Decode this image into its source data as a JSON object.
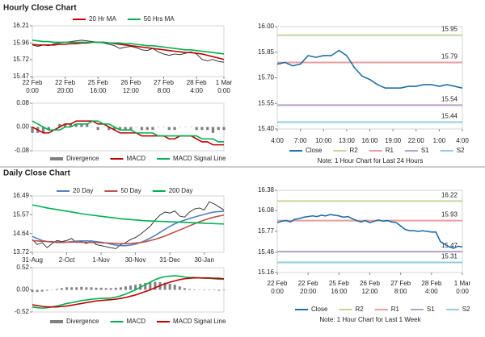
{
  "sections": [
    {
      "title": "Hourly Close Chart"
    },
    {
      "title": "Daily Close Chart"
    }
  ],
  "chart_data": [
    {
      "type": "line",
      "ylim": [
        15.47,
        16.21
      ],
      "yticks": [
        16.21,
        15.96,
        15.72,
        15.47
      ],
      "xlim": [
        0,
        35
      ],
      "xticks": [
        {
          "value": 0,
          "label": [
            "22 Feb",
            "0:00"
          ]
        },
        {
          "value": 6,
          "label": [
            "22 Feb",
            "20:00"
          ]
        },
        {
          "value": 12,
          "label": [
            "25 Feb",
            "16:00"
          ]
        },
        {
          "value": 18,
          "label": [
            "26 Feb",
            "12:00"
          ]
        },
        {
          "value": 24,
          "label": [
            "27 Feb",
            "8:00"
          ]
        },
        {
          "value": 30,
          "label": [
            "28 Feb",
            "4:00"
          ]
        },
        {
          "value": 35,
          "label": [
            "1 Mar",
            "0:00"
          ]
        }
      ],
      "series": [
        {
          "color": "#222222",
          "values": [
            15.93,
            15.91,
            15.93,
            15.92,
            15.95,
            15.96,
            15.97,
            15.98,
            15.99,
            16.0,
            15.99,
            15.98,
            15.97,
            15.96,
            15.94,
            15.92,
            15.88,
            15.9,
            15.91,
            15.89,
            15.86,
            15.85,
            15.88,
            15.83,
            15.8,
            15.78,
            15.8,
            15.79,
            15.81,
            15.83,
            15.8,
            15.72,
            15.7,
            15.72,
            15.69,
            15.68
          ]
        },
        {
          "name": "20 Hr MA",
          "color": "#c00000",
          "values": [
            15.94,
            15.93,
            15.93,
            15.93,
            15.93,
            15.94,
            15.94,
            15.95,
            15.95,
            15.96,
            15.96,
            15.97,
            15.97,
            15.97,
            15.96,
            15.95,
            15.94,
            15.93,
            15.92,
            15.91,
            15.9,
            15.89,
            15.88,
            15.87,
            15.86,
            15.85,
            15.84,
            15.83,
            15.82,
            15.82,
            15.81,
            15.8,
            15.78,
            15.76,
            15.74,
            15.72
          ]
        },
        {
          "name": "50 Hrs MA",
          "color": "#00b050",
          "values": [
            16.0,
            15.99,
            15.98,
            15.98,
            15.97,
            15.97,
            15.97,
            15.97,
            15.97,
            15.97,
            15.97,
            15.97,
            15.97,
            15.97,
            15.96,
            15.96,
            15.96,
            15.95,
            15.95,
            15.94,
            15.93,
            15.92,
            15.92,
            15.91,
            15.9,
            15.89,
            15.88,
            15.87,
            15.86,
            15.86,
            15.85,
            15.84,
            15.83,
            15.82,
            15.81,
            15.8
          ]
        }
      ]
    },
    {
      "type": "line",
      "ylim": [
        -0.08,
        0.08
      ],
      "yticks": [
        0.08,
        {
          "value": 0,
          "label": "0.00"
        },
        -0.08
      ],
      "xlim": [
        0,
        35
      ],
      "series": [
        {
          "name": "Divergence",
          "type": "bar",
          "color": "#808080",
          "values": [
            -0.02,
            -0.02,
            -0.02,
            -0.01,
            0,
            0.01,
            0.01,
            0.01,
            0.01,
            0.01,
            0.01,
            0,
            -0.01,
            0,
            -0.01,
            -0.01,
            -0.01,
            -0.01,
            -0.01,
            0,
            -0.01,
            -0.01,
            -0.01,
            0,
            0,
            -0.01,
            -0.01,
            0,
            0,
            0,
            -0.01,
            -0.01,
            -0.01,
            -0.02,
            -0.01,
            -0.01
          ]
        },
        {
          "name": "MACD",
          "color": "#c00000",
          "values": [
            0.0,
            -0.01,
            -0.02,
            -0.02,
            -0.01,
            0.0,
            0.01,
            0.01,
            0.02,
            0.02,
            0.02,
            0.02,
            0.01,
            0.01,
            0.0,
            -0.01,
            -0.02,
            -0.02,
            -0.02,
            -0.02,
            -0.03,
            -0.03,
            -0.03,
            -0.03,
            -0.03,
            -0.04,
            -0.04,
            -0.03,
            -0.03,
            -0.03,
            -0.04,
            -0.05,
            -0.05,
            -0.06,
            -0.06,
            -0.06
          ]
        },
        {
          "name": "MACD Signal Line",
          "color": "#00b050",
          "values": [
            0.02,
            0.01,
            0.0,
            -0.01,
            -0.01,
            -0.01,
            0.0,
            0.0,
            0.01,
            0.01,
            0.01,
            0.02,
            0.02,
            0.01,
            0.01,
            0.0,
            -0.01,
            -0.01,
            -0.01,
            -0.02,
            -0.02,
            -0.02,
            -0.02,
            -0.03,
            -0.03,
            -0.03,
            -0.03,
            -0.03,
            -0.03,
            -0.03,
            -0.03,
            -0.04,
            -0.04,
            -0.04,
            -0.05,
            -0.05
          ]
        }
      ]
    },
    {
      "type": "line",
      "ylim": [
        15.4,
        16.0
      ],
      "yticks": [
        {
          "value": 16,
          "label": "16.00"
        },
        15.85,
        {
          "value": 15.7,
          "label": "15.70"
        },
        15.55,
        {
          "value": 15.4,
          "label": "15.40"
        }
      ],
      "xlim": [
        0,
        24
      ],
      "xticks": [
        {
          "value": 0,
          "label": "4:00"
        },
        {
          "value": 3,
          "label": "7:00"
        },
        {
          "value": 6,
          "label": "10:00"
        },
        {
          "value": 9,
          "label": "13:00"
        },
        {
          "value": 12,
          "label": "16:00"
        },
        {
          "value": 15,
          "label": "19:00"
        },
        {
          "value": 18,
          "label": "22:00"
        },
        {
          "value": 21,
          "label": "1:00"
        },
        {
          "value": 24,
          "label": "4:00"
        }
      ],
      "series": [
        {
          "name": "Close",
          "color": "#1f6fa8",
          "values": [
            15.78,
            15.79,
            15.77,
            15.78,
            15.83,
            15.82,
            15.83,
            15.83,
            15.86,
            15.83,
            15.76,
            15.71,
            15.69,
            15.66,
            15.64,
            15.64,
            15.64,
            15.65,
            15.65,
            15.66,
            15.66,
            15.65,
            15.66,
            15.65,
            15.64
          ]
        }
      ],
      "reference_lines": [
        {
          "name": "R2",
          "color": "#c3d69b",
          "value": 15.95
        },
        {
          "name": "R1",
          "color": "#e6a0a0",
          "value": 15.79
        },
        {
          "name": "S1",
          "color": "#b3a2c7",
          "value": 15.54
        },
        {
          "name": "S2",
          "color": "#93cddd",
          "value": 15.44
        }
      ],
      "note": "Note: 1 Hour Chart for Last 24 Hours"
    },
    {
      "type": "line",
      "ylim": [
        13.72,
        16.49
      ],
      "yticks": [
        16.49,
        15.57,
        14.64,
        13.72
      ],
      "xlim": [
        0,
        39
      ],
      "xticks": [
        {
          "value": 0,
          "label": "31-Aug"
        },
        {
          "value": 7,
          "label": "2-Oct"
        },
        {
          "value": 14,
          "label": "1-Nov"
        },
        {
          "value": 21,
          "label": "30-Nov"
        },
        {
          "value": 28,
          "label": "31-Dec"
        },
        {
          "value": 35,
          "label": "30-Jan"
        }
      ],
      "series": [
        {
          "color": "#222222",
          "values": [
            14.35,
            14.1,
            14.2,
            13.95,
            14.15,
            14.3,
            14.25,
            14.3,
            14.4,
            14.2,
            14.25,
            14.15,
            14.3,
            14.1,
            14.05,
            14.0,
            13.95,
            13.9,
            14.1,
            14.2,
            14.35,
            14.45,
            14.6,
            14.8,
            15.0,
            15.3,
            15.55,
            15.7,
            15.65,
            15.75,
            15.5,
            15.45,
            15.7,
            15.85,
            15.9,
            15.8,
            16.2,
            16.1,
            15.95,
            15.8
          ]
        },
        {
          "name": "20 Day",
          "color": "#4f81bd",
          "values": [
            14.5,
            14.4,
            14.3,
            14.25,
            14.22,
            14.2,
            14.2,
            14.22,
            14.25,
            14.27,
            14.28,
            14.28,
            14.27,
            14.25,
            14.22,
            14.18,
            14.12,
            14.08,
            14.05,
            14.05,
            14.08,
            14.12,
            14.2,
            14.3,
            14.42,
            14.55,
            14.7,
            14.85,
            15.0,
            15.12,
            15.22,
            15.3,
            15.38,
            15.45,
            15.52,
            15.58,
            15.65,
            15.7,
            15.72,
            15.74
          ]
        },
        {
          "name": "50 Day",
          "color": "#c0504d",
          "values": [
            14.3,
            14.28,
            14.26,
            14.25,
            14.24,
            14.23,
            14.22,
            14.22,
            14.22,
            14.22,
            14.21,
            14.21,
            14.2,
            14.2,
            14.19,
            14.18,
            14.17,
            14.16,
            14.15,
            14.15,
            14.16,
            14.18,
            14.2,
            14.24,
            14.3,
            14.36,
            14.44,
            14.52,
            14.62,
            14.72,
            14.82,
            14.92,
            15.02,
            15.12,
            15.22,
            15.3,
            15.38,
            15.45,
            15.5,
            15.55
          ]
        },
        {
          "name": "200 Day",
          "color": "#00b050",
          "values": [
            16.05,
            16.0,
            15.95,
            15.9,
            15.86,
            15.82,
            15.78,
            15.74,
            15.7,
            15.66,
            15.62,
            15.58,
            15.55,
            15.52,
            15.49,
            15.46,
            15.43,
            15.4,
            15.37,
            15.35,
            15.33,
            15.31,
            15.29,
            15.27,
            15.26,
            15.25,
            15.24,
            15.23,
            15.22,
            15.21,
            15.2,
            15.19,
            15.18,
            15.17,
            15.16,
            15.15,
            15.14,
            15.13,
            15.12,
            15.11
          ]
        }
      ]
    },
    {
      "type": "line",
      "ylim": [
        -0.52,
        0.52
      ],
      "yticks": [
        0.52,
        {
          "value": 0,
          "label": "0.00"
        },
        -0.52
      ],
      "xlim": [
        0,
        39
      ],
      "series": [
        {
          "name": "Divergence",
          "type": "bar",
          "color": "#808080",
          "values": [
            -0.05,
            -0.05,
            -0.04,
            -0.02,
            0,
            0.02,
            0.04,
            0.06,
            0.06,
            0.06,
            0.07,
            0.06,
            0.06,
            0.05,
            0.05,
            0.04,
            0.04,
            0.05,
            0.06,
            0.08,
            0.1,
            0.12,
            0.14,
            0.16,
            0.18,
            0.19,
            0.18,
            0.17,
            0.14,
            0.12,
            0.08,
            0.04,
            0.02,
            0.01,
            0,
            -0.01,
            -0.01,
            -0.01,
            -0.02,
            -0.01
          ]
        },
        {
          "name": "MACD",
          "color": "#00b050",
          "values": [
            -0.4,
            -0.42,
            -0.43,
            -0.42,
            -0.4,
            -0.38,
            -0.35,
            -0.32,
            -0.3,
            -0.28,
            -0.25,
            -0.24,
            -0.22,
            -0.21,
            -0.2,
            -0.2,
            -0.19,
            -0.17,
            -0.14,
            -0.1,
            -0.05,
            0.0,
            0.06,
            0.12,
            0.18,
            0.24,
            0.28,
            0.31,
            0.32,
            0.33,
            0.32,
            0.3,
            0.29,
            0.29,
            0.28,
            0.27,
            0.27,
            0.26,
            0.25,
            0.25
          ]
        },
        {
          "name": "MACD Signal Line",
          "color": "#c00000",
          "values": [
            -0.35,
            -0.37,
            -0.39,
            -0.4,
            -0.4,
            -0.4,
            -0.39,
            -0.38,
            -0.36,
            -0.34,
            -0.32,
            -0.3,
            -0.28,
            -0.26,
            -0.25,
            -0.24,
            -0.23,
            -0.22,
            -0.2,
            -0.18,
            -0.15,
            -0.12,
            -0.08,
            -0.04,
            0.0,
            0.05,
            0.1,
            0.14,
            0.18,
            0.21,
            0.24,
            0.26,
            0.27,
            0.28,
            0.28,
            0.28,
            0.28,
            0.27,
            0.27,
            0.26
          ]
        }
      ]
    },
    {
      "type": "line",
      "ylim": [
        15.16,
        16.38
      ],
      "yticks": [
        16.38,
        16.08,
        15.77,
        15.46,
        15.16
      ],
      "xlim": [
        0,
        42
      ],
      "xticks": [
        {
          "value": 0,
          "label": [
            "22 Feb",
            "0:00"
          ]
        },
        {
          "value": 7,
          "label": [
            "22 Feb",
            "20:00"
          ]
        },
        {
          "value": 14,
          "label": [
            "25 Feb",
            "16:00"
          ]
        },
        {
          "value": 21,
          "label": [
            "26 Feb",
            "12:00"
          ]
        },
        {
          "value": 28,
          "label": [
            "27 Feb",
            "8:00"
          ]
        },
        {
          "value": 35,
          "label": [
            "28 Feb",
            "4:00"
          ]
        },
        {
          "value": 42,
          "label": [
            "1 Mar",
            "0:00"
          ]
        }
      ],
      "series": [
        {
          "name": "Close",
          "color": "#1f6fa8",
          "values": [
            15.9,
            15.92,
            15.93,
            15.91,
            15.95,
            15.96,
            15.98,
            15.99,
            16.0,
            15.99,
            16.01,
            16.0,
            16.02,
            16.01,
            16.0,
            15.98,
            15.99,
            15.96,
            15.93,
            15.91,
            15.93,
            15.9,
            15.92,
            15.94,
            15.92,
            15.93,
            15.91,
            15.9,
            15.85,
            15.8,
            15.78,
            15.78,
            15.77,
            15.78,
            15.77,
            15.76,
            15.76,
            15.62,
            15.58,
            15.54,
            15.52,
            15.55,
            15.54
          ]
        }
      ],
      "reference_lines": [
        {
          "name": "R2",
          "color": "#c3d69b",
          "value": 16.22
        },
        {
          "name": "R1",
          "color": "#e6a0a0",
          "value": 15.93
        },
        {
          "name": "S1",
          "color": "#b3a2c7",
          "value": 15.47
        },
        {
          "name": "S2",
          "color": "#93cddd",
          "value": 15.31
        }
      ],
      "note": "Note: 1 Hour Chart for Last 1 Week"
    }
  ]
}
